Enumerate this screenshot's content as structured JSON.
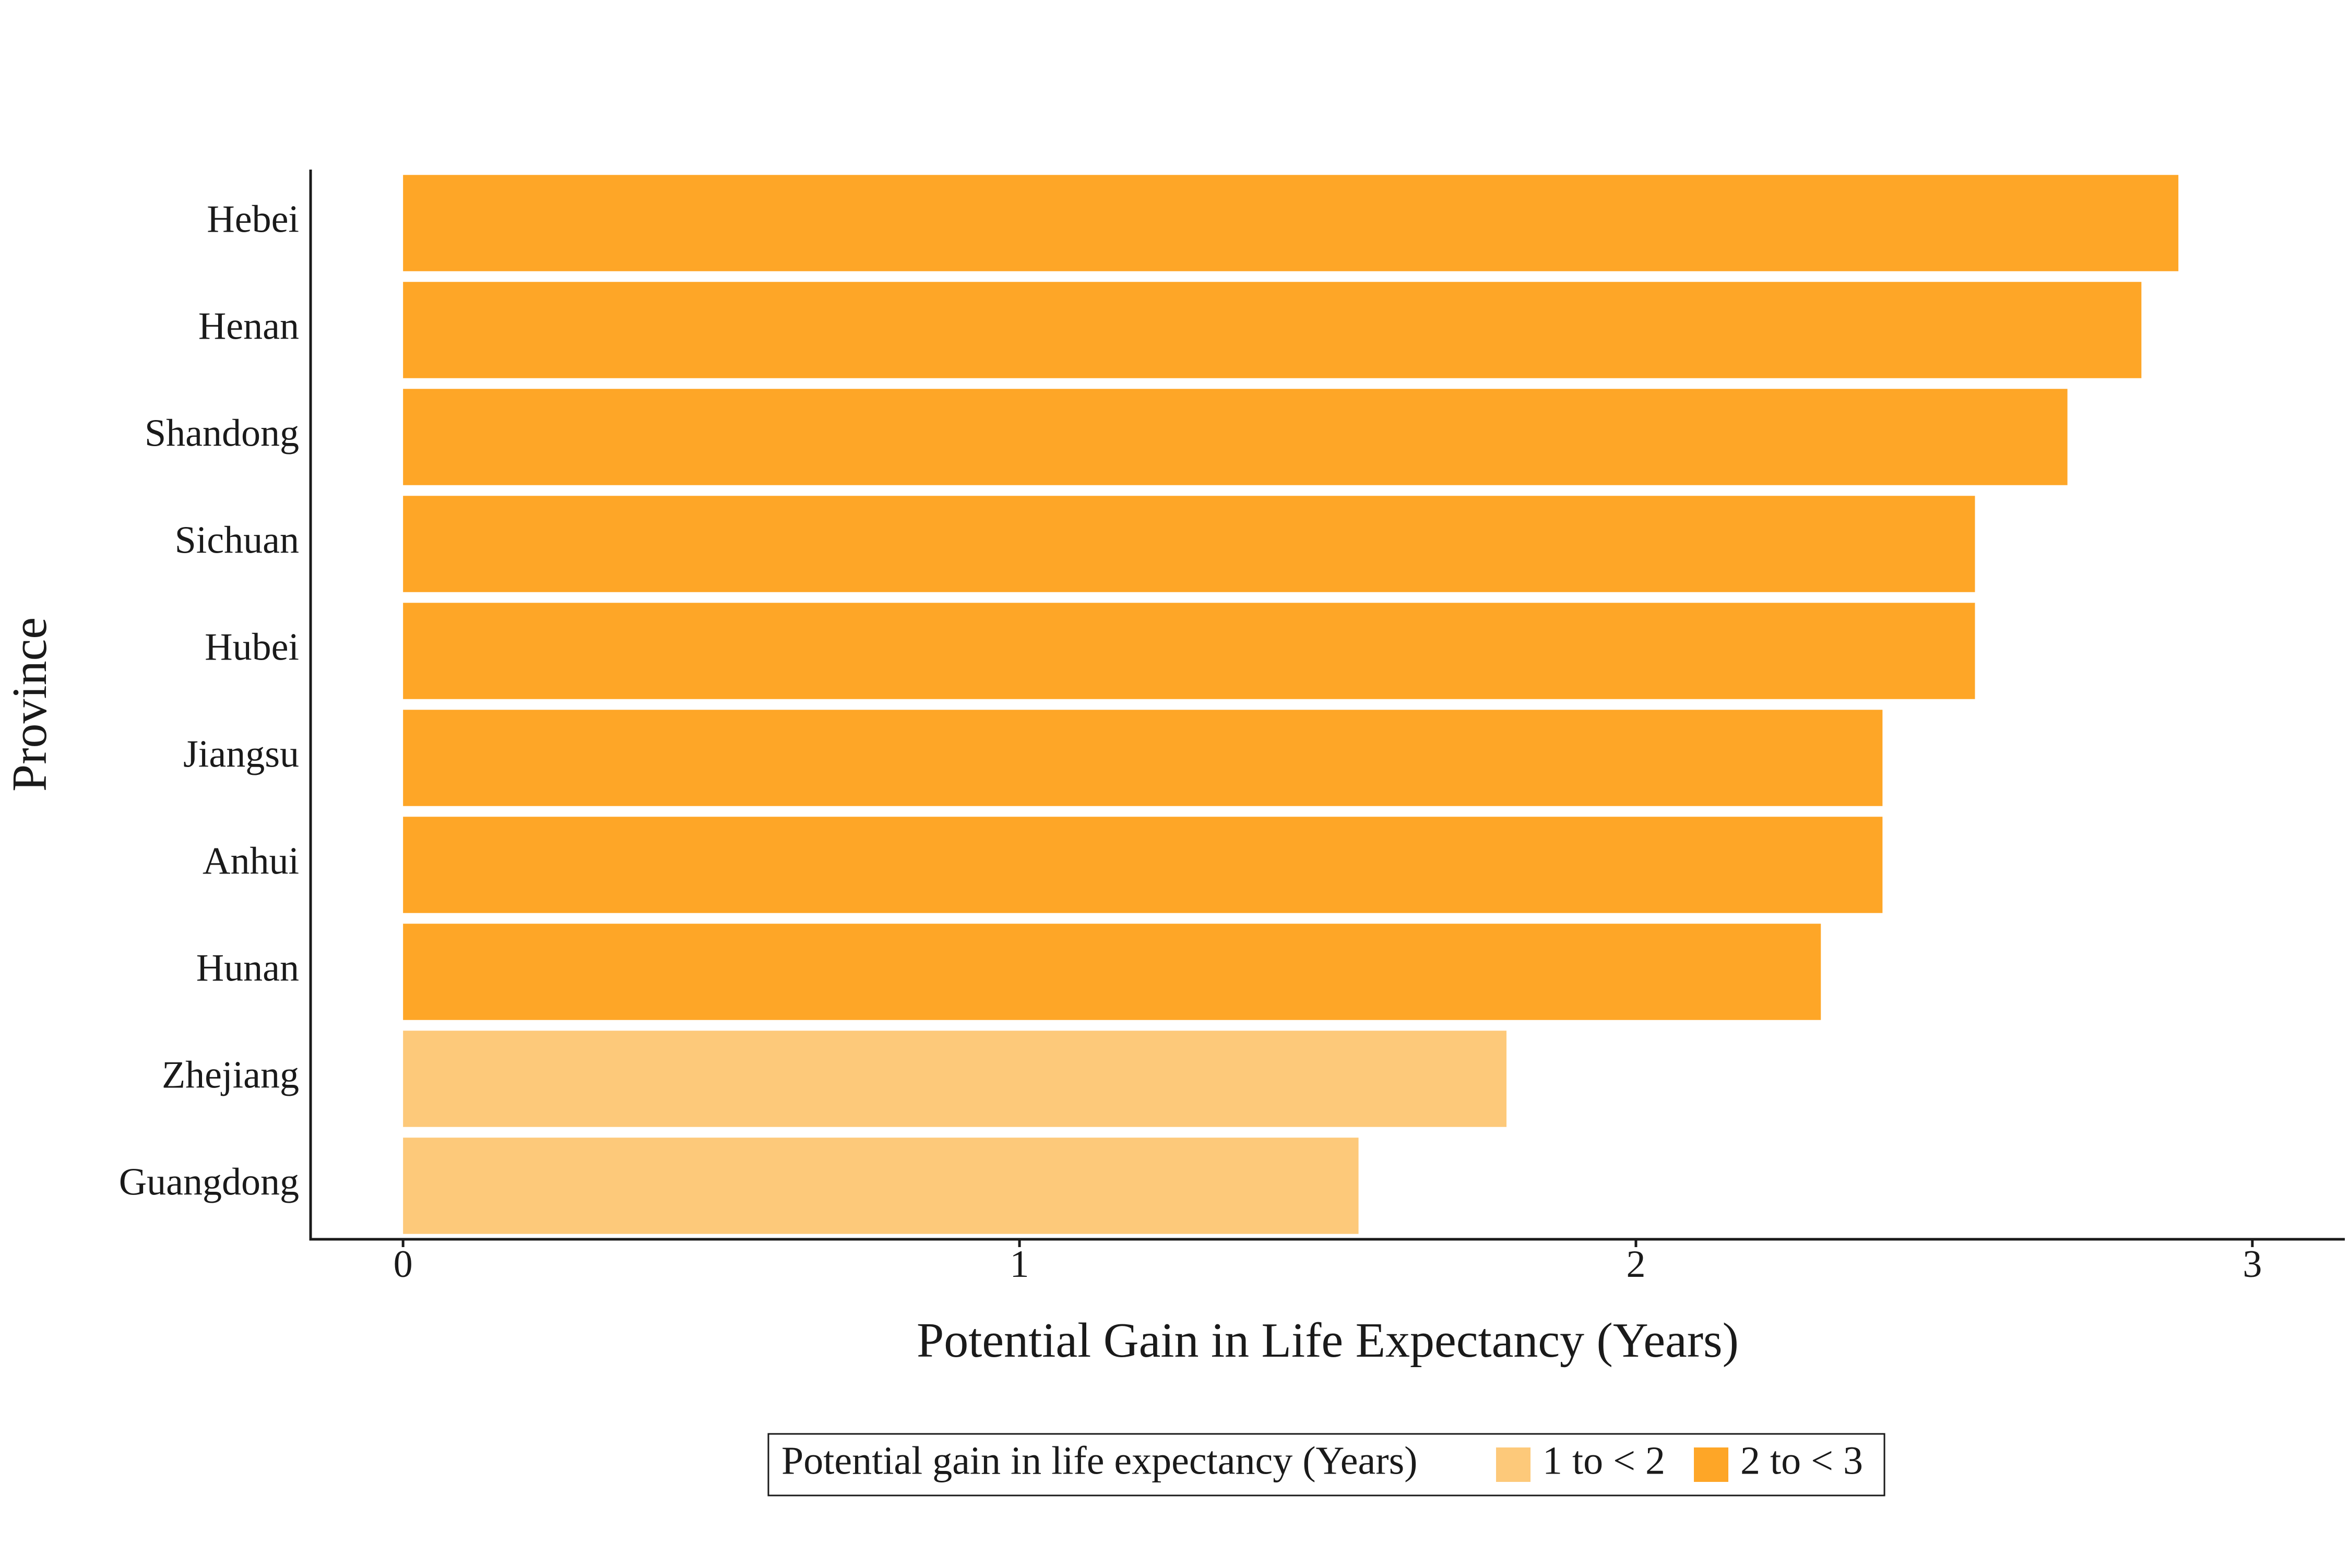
{
  "chart_data": {
    "type": "bar",
    "orientation": "horizontal",
    "title": "",
    "xlabel": "Potential Gain in Life Expectancy (Years)",
    "ylabel": "Province",
    "xlim": [
      -0.15,
      3.15
    ],
    "xticks": [
      0,
      1,
      2,
      3
    ],
    "grid": false,
    "categories": [
      "Hebei",
      "Henan",
      "Shandong",
      "Sichuan",
      "Hubei",
      "Jiangsu",
      "Anhui",
      "Hunan",
      "Zhejiang",
      "Guangdong"
    ],
    "values": [
      2.88,
      2.82,
      2.7,
      2.55,
      2.55,
      2.4,
      2.4,
      2.3,
      1.79,
      1.55
    ],
    "groups": [
      "2 to < 3",
      "2 to < 3",
      "2 to < 3",
      "2 to < 3",
      "2 to < 3",
      "2 to < 3",
      "2 to < 3",
      "2 to < 3",
      "1 to < 2",
      "1 to < 2"
    ],
    "legend": {
      "title": "Potential gain in life expectancy (Years)",
      "position": "bottom",
      "items": [
        {
          "label": "1 to < 2",
          "color": "#fdc97a"
        },
        {
          "label": "2 to < 3",
          "color": "#fea627"
        }
      ]
    }
  }
}
